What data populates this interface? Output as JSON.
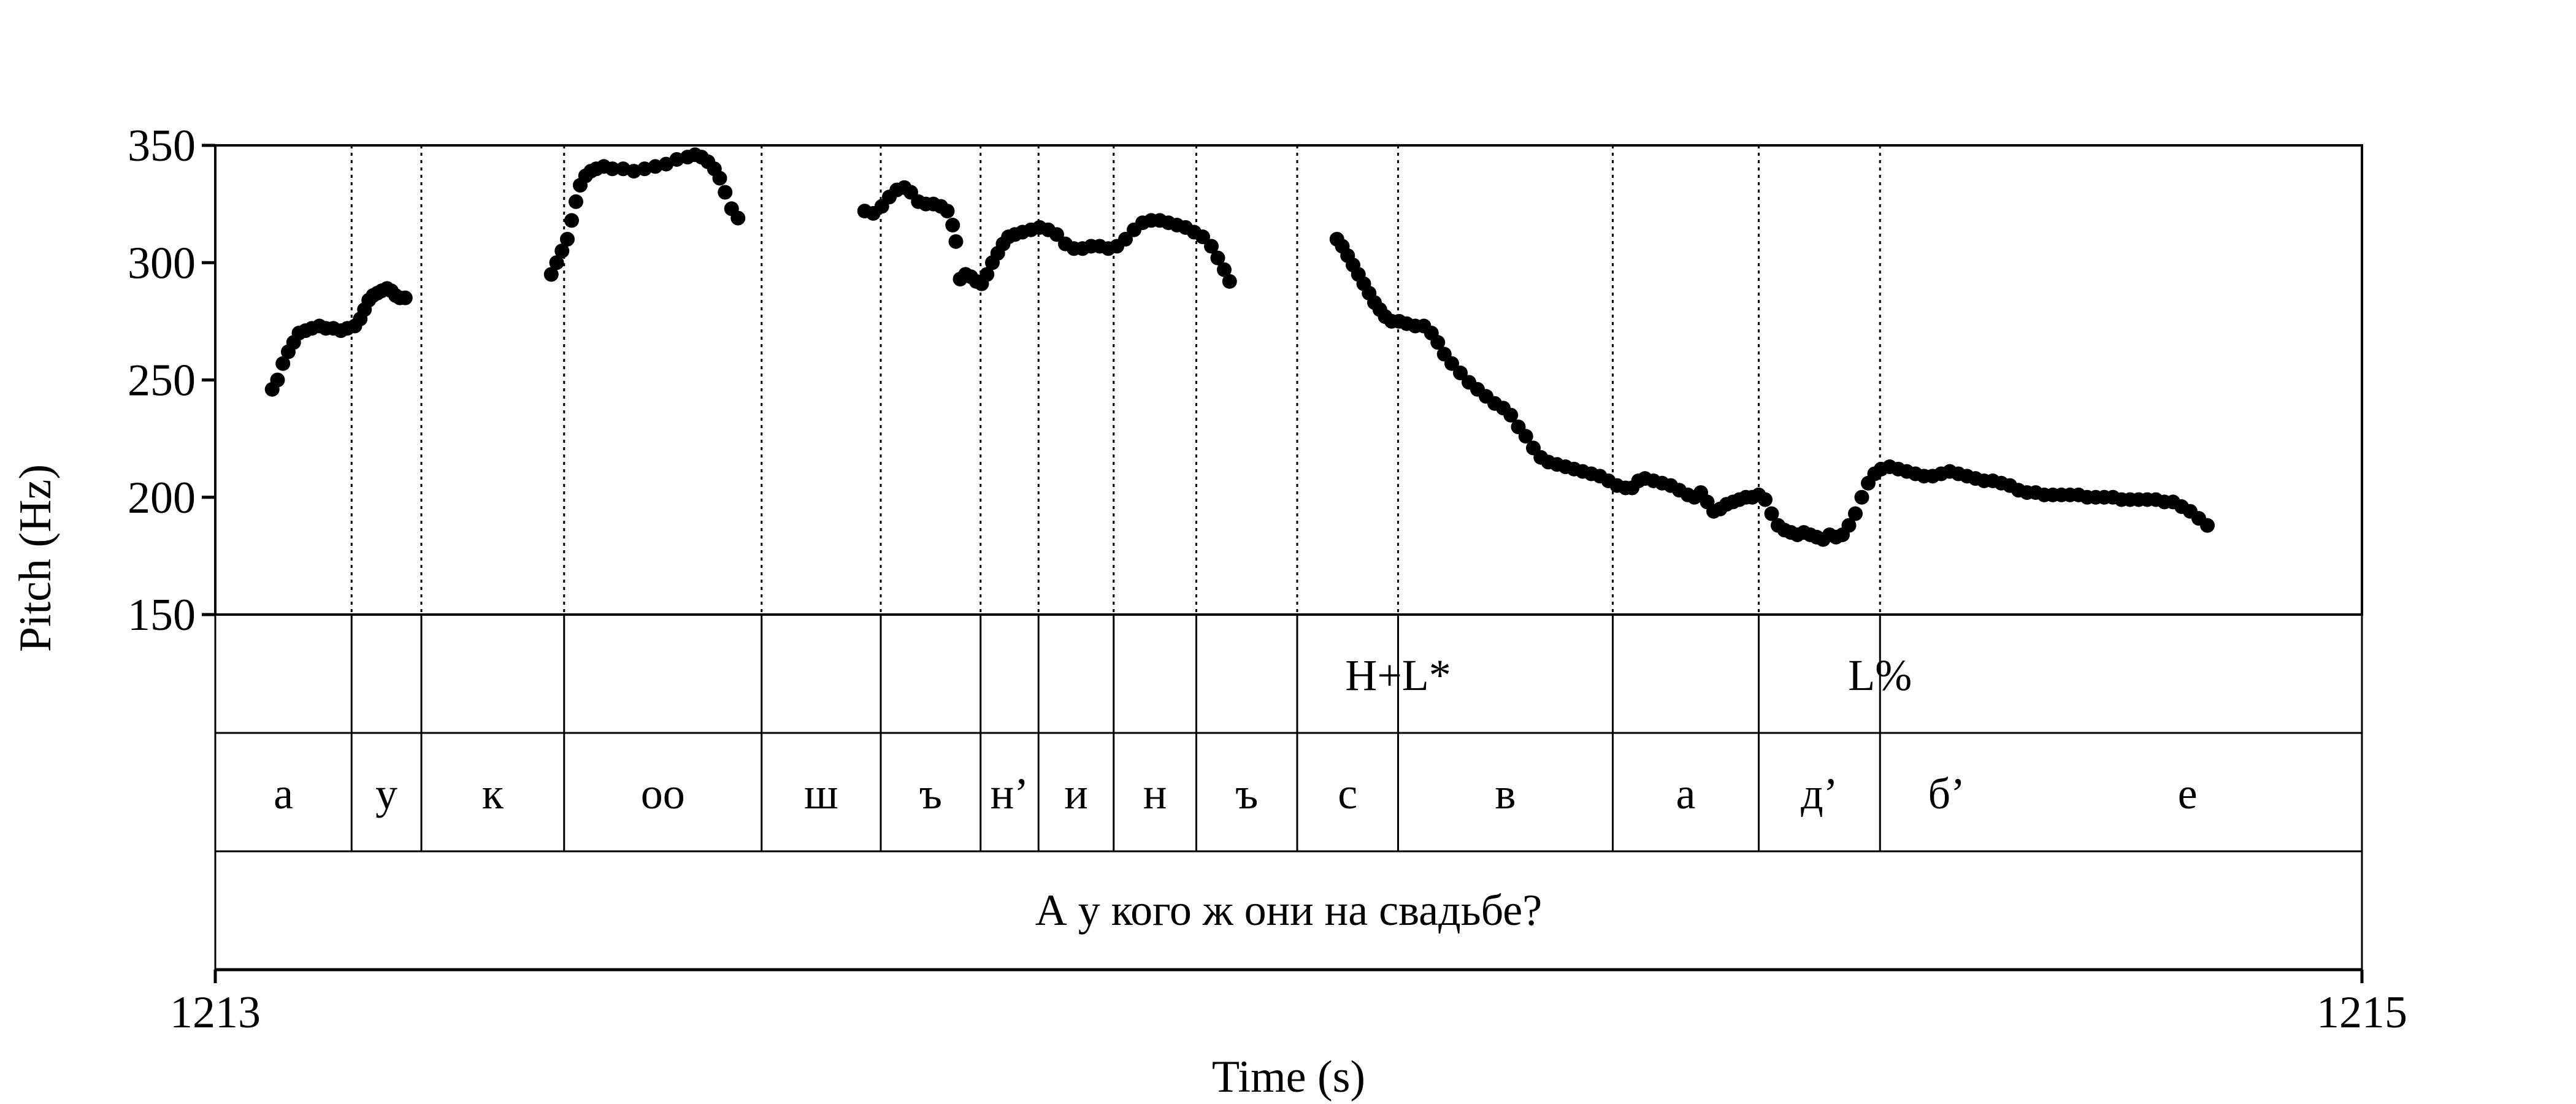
{
  "chart_data": {
    "type": "scatter",
    "xlabel": "Time (s)",
    "ylabel": "Pitch (Hz)",
    "xlim": [
      1213,
      1215
    ],
    "ylim": [
      150,
      350
    ],
    "x_tick_labels": [
      "1213",
      "1215"
    ],
    "y_ticks": [
      150,
      200,
      250,
      300,
      350
    ],
    "y_tick_labels": [
      "150",
      "200",
      "250",
      "300",
      "350"
    ],
    "grid": false,
    "series": [
      {
        "color": "#000000",
        "points": [
          [
            1213.053,
            246
          ],
          [
            1213.058,
            250
          ],
          [
            1213.063,
            257
          ],
          [
            1213.068,
            262
          ],
          [
            1213.073,
            266
          ],
          [
            1213.078,
            270
          ],
          [
            1213.084,
            271
          ],
          [
            1213.09,
            272
          ],
          [
            1213.097,
            273
          ],
          [
            1213.103,
            272
          ],
          [
            1213.11,
            272
          ],
          [
            1213.117,
            271
          ],
          [
            1213.123,
            272
          ],
          [
            1213.13,
            273
          ],
          [
            1213.135,
            276
          ],
          [
            1213.139,
            280
          ],
          [
            1213.143,
            284
          ],
          [
            1213.147,
            286
          ],
          [
            1213.151,
            287
          ],
          [
            1213.155,
            288
          ],
          [
            1213.16,
            289
          ],
          [
            1213.164,
            288
          ],
          [
            1213.168,
            286
          ],
          [
            1213.172,
            285
          ],
          [
            1213.177,
            285
          ],
          [
            1213.313,
            295
          ],
          [
            1213.318,
            300
          ],
          [
            1213.323,
            305
          ],
          [
            1213.328,
            310
          ],
          [
            1213.332,
            318
          ],
          [
            1213.336,
            326
          ],
          [
            1213.34,
            333
          ],
          [
            1213.345,
            337
          ],
          [
            1213.35,
            339
          ],
          [
            1213.355,
            340
          ],
          [
            1213.362,
            341
          ],
          [
            1213.37,
            340
          ],
          [
            1213.38,
            340
          ],
          [
            1213.39,
            339
          ],
          [
            1213.4,
            340
          ],
          [
            1213.41,
            341
          ],
          [
            1213.42,
            342
          ],
          [
            1213.43,
            344
          ],
          [
            1213.44,
            345
          ],
          [
            1213.447,
            346
          ],
          [
            1213.453,
            345
          ],
          [
            1213.459,
            343
          ],
          [
            1213.465,
            340
          ],
          [
            1213.47,
            336
          ],
          [
            1213.475,
            330
          ],
          [
            1213.481,
            323
          ],
          [
            1213.487,
            319
          ],
          [
            1213.605,
            322
          ],
          [
            1213.613,
            321
          ],
          [
            1213.621,
            324
          ],
          [
            1213.628,
            328
          ],
          [
            1213.635,
            331
          ],
          [
            1213.642,
            332
          ],
          [
            1213.648,
            330
          ],
          [
            1213.655,
            326
          ],
          [
            1213.662,
            325
          ],
          [
            1213.669,
            325
          ],
          [
            1213.676,
            324
          ],
          [
            1213.682,
            322
          ],
          [
            1213.687,
            316
          ],
          [
            1213.69,
            309
          ],
          [
            1213.694,
            293
          ],
          [
            1213.699,
            295
          ],
          [
            1213.704,
            294
          ],
          [
            1213.709,
            292
          ],
          [
            1213.714,
            291
          ],
          [
            1213.719,
            295
          ],
          [
            1213.724,
            300
          ],
          [
            1213.729,
            304
          ],
          [
            1213.734,
            308
          ],
          [
            1213.739,
            311
          ],
          [
            1213.745,
            312
          ],
          [
            1213.752,
            313
          ],
          [
            1213.76,
            314
          ],
          [
            1213.768,
            315
          ],
          [
            1213.776,
            314
          ],
          [
            1213.784,
            312
          ],
          [
            1213.792,
            308
          ],
          [
            1213.8,
            306
          ],
          [
            1213.808,
            306
          ],
          [
            1213.816,
            307
          ],
          [
            1213.824,
            307
          ],
          [
            1213.832,
            306
          ],
          [
            1213.84,
            307
          ],
          [
            1213.848,
            310
          ],
          [
            1213.856,
            314
          ],
          [
            1213.864,
            317
          ],
          [
            1213.872,
            318
          ],
          [
            1213.88,
            318
          ],
          [
            1213.888,
            317
          ],
          [
            1213.896,
            316
          ],
          [
            1213.904,
            315
          ],
          [
            1213.912,
            313
          ],
          [
            1213.92,
            311
          ],
          [
            1213.928,
            307
          ],
          [
            1213.934,
            302
          ],
          [
            1213.94,
            297
          ],
          [
            1213.945,
            292
          ],
          [
            1214.045,
            310
          ],
          [
            1214.05,
            307
          ],
          [
            1214.055,
            303
          ],
          [
            1214.06,
            299
          ],
          [
            1214.065,
            295
          ],
          [
            1214.07,
            291
          ],
          [
            1214.075,
            287
          ],
          [
            1214.08,
            283
          ],
          [
            1214.085,
            280
          ],
          [
            1214.09,
            277
          ],
          [
            1214.096,
            275
          ],
          [
            1214.103,
            275
          ],
          [
            1214.11,
            274
          ],
          [
            1214.118,
            273
          ],
          [
            1214.126,
            273
          ],
          [
            1214.133,
            270
          ],
          [
            1214.139,
            266
          ],
          [
            1214.145,
            261
          ],
          [
            1214.152,
            257
          ],
          [
            1214.16,
            253
          ],
          [
            1214.168,
            249
          ],
          [
            1214.176,
            246
          ],
          [
            1214.184,
            243
          ],
          [
            1214.192,
            240
          ],
          [
            1214.2,
            238
          ],
          [
            1214.207,
            235
          ],
          [
            1214.214,
            230
          ],
          [
            1214.221,
            226
          ],
          [
            1214.228,
            221
          ],
          [
            1214.235,
            217
          ],
          [
            1214.242,
            215
          ],
          [
            1214.25,
            214
          ],
          [
            1214.258,
            213
          ],
          [
            1214.266,
            212
          ],
          [
            1214.274,
            211
          ],
          [
            1214.282,
            210
          ],
          [
            1214.29,
            209
          ],
          [
            1214.298,
            207
          ],
          [
            1214.306,
            205
          ],
          [
            1214.314,
            204
          ],
          [
            1214.32,
            204
          ],
          [
            1214.326,
            207
          ],
          [
            1214.332,
            208
          ],
          [
            1214.34,
            207
          ],
          [
            1214.348,
            206
          ],
          [
            1214.356,
            205
          ],
          [
            1214.364,
            203
          ],
          [
            1214.372,
            201
          ],
          [
            1214.378,
            200
          ],
          [
            1214.384,
            202
          ],
          [
            1214.39,
            198
          ],
          [
            1214.396,
            194
          ],
          [
            1214.402,
            195
          ],
          [
            1214.408,
            197
          ],
          [
            1214.414,
            198
          ],
          [
            1214.42,
            199
          ],
          [
            1214.426,
            200
          ],
          [
            1214.432,
            200
          ],
          [
            1214.438,
            201
          ],
          [
            1214.444,
            199
          ],
          [
            1214.45,
            193
          ],
          [
            1214.456,
            188
          ],
          [
            1214.462,
            186
          ],
          [
            1214.468,
            185
          ],
          [
            1214.474,
            184
          ],
          [
            1214.48,
            185
          ],
          [
            1214.486,
            184
          ],
          [
            1214.492,
            183
          ],
          [
            1214.498,
            182
          ],
          [
            1214.504,
            184
          ],
          [
            1214.51,
            183
          ],
          [
            1214.516,
            184
          ],
          [
            1214.522,
            188
          ],
          [
            1214.528,
            193
          ],
          [
            1214.534,
            200
          ],
          [
            1214.54,
            206
          ],
          [
            1214.546,
            210
          ],
          [
            1214.552,
            212
          ],
          [
            1214.56,
            213
          ],
          [
            1214.568,
            212
          ],
          [
            1214.576,
            211
          ],
          [
            1214.584,
            210
          ],
          [
            1214.592,
            209
          ],
          [
            1214.6,
            209
          ],
          [
            1214.608,
            210
          ],
          [
            1214.616,
            211
          ],
          [
            1214.624,
            210
          ],
          [
            1214.632,
            209
          ],
          [
            1214.64,
            208
          ],
          [
            1214.648,
            207
          ],
          [
            1214.656,
            207
          ],
          [
            1214.664,
            206
          ],
          [
            1214.672,
            205
          ],
          [
            1214.68,
            203
          ],
          [
            1214.688,
            202
          ],
          [
            1214.696,
            202
          ],
          [
            1214.704,
            201
          ],
          [
            1214.712,
            201
          ],
          [
            1214.72,
            201
          ],
          [
            1214.728,
            201
          ],
          [
            1214.736,
            201
          ],
          [
            1214.744,
            200
          ],
          [
            1214.752,
            200
          ],
          [
            1214.76,
            200
          ],
          [
            1214.768,
            200
          ],
          [
            1214.776,
            199
          ],
          [
            1214.784,
            199
          ],
          [
            1214.792,
            199
          ],
          [
            1214.8,
            199
          ],
          [
            1214.808,
            199
          ],
          [
            1214.816,
            198
          ],
          [
            1214.824,
            198
          ],
          [
            1214.832,
            196
          ],
          [
            1214.84,
            194
          ],
          [
            1214.848,
            191
          ],
          [
            1214.856,
            188
          ]
        ]
      }
    ],
    "boundaries": [
      1213.127,
      1213.192,
      1213.325,
      1213.509,
      1213.62,
      1213.713,
      1213.767,
      1213.837,
      1213.914,
      1214.008,
      1214.102,
      1214.302,
      1214.438,
      1214.551
    ],
    "tones": [
      {
        "label": "H+L*",
        "time": 1214.102
      },
      {
        "label": "L%",
        "time": 1214.551
      }
    ],
    "phones": [
      {
        "label": "а",
        "start": 1213.0,
        "end": 1213.127
      },
      {
        "label": "у",
        "start": 1213.127,
        "end": 1213.192
      },
      {
        "label": "к",
        "start": 1213.192,
        "end": 1213.325
      },
      {
        "label": "оо",
        "start": 1213.325,
        "end": 1213.509
      },
      {
        "label": "ш",
        "start": 1213.509,
        "end": 1213.62
      },
      {
        "label": "ъ",
        "start": 1213.62,
        "end": 1213.713
      },
      {
        "label": "н’",
        "start": 1213.713,
        "end": 1213.767
      },
      {
        "label": "и",
        "start": 1213.767,
        "end": 1213.837
      },
      {
        "label": "н",
        "start": 1213.837,
        "end": 1213.914
      },
      {
        "label": "ъ",
        "start": 1213.914,
        "end": 1214.008
      },
      {
        "label": "с",
        "start": 1214.008,
        "end": 1214.102
      },
      {
        "label": "в",
        "start": 1214.102,
        "end": 1214.302
      },
      {
        "label": "а",
        "start": 1214.302,
        "end": 1214.438
      },
      {
        "label": "д’",
        "start": 1214.438,
        "end": 1214.551
      },
      {
        "label": "б’",
        "start": 1214.551,
        "end": 1214.675
      },
      {
        "label": "е",
        "start": 1214.675,
        "end": 1215.0
      }
    ],
    "sentence": "А у кого ж они на свадьбе?"
  }
}
